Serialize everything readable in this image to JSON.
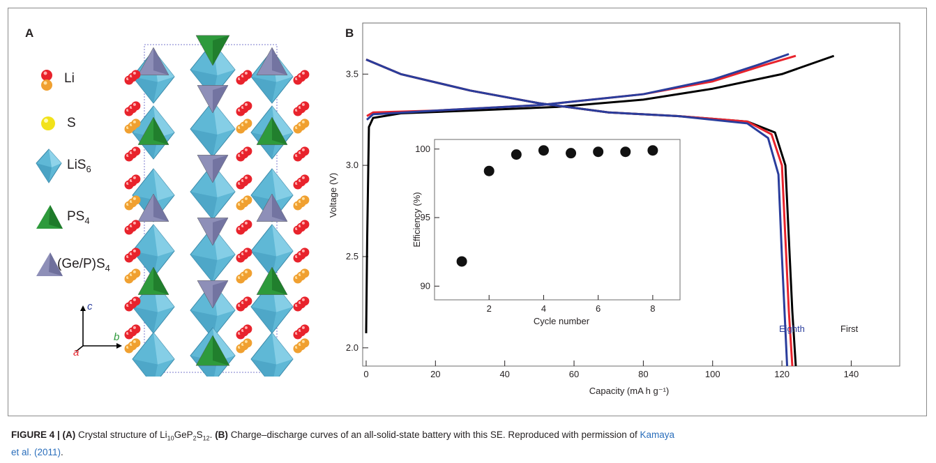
{
  "panel_a": {
    "letter": "A",
    "legend": [
      {
        "label": "Li",
        "icon": "li-atom-pair-icon"
      },
      {
        "label": "S",
        "icon": "s-atom-icon"
      },
      {
        "label": "LiS",
        "sub": "6",
        "icon": "lis6-octahedron-icon"
      },
      {
        "label": "PS",
        "sub": "4",
        "icon": "ps4-tetrahedron-icon"
      },
      {
        "label": "(Ge/P)S",
        "sub": "4",
        "icon": "gep-s4-tetrahedron-icon"
      }
    ],
    "axes": {
      "c": "c",
      "b": "b",
      "a": "a"
    },
    "colors": {
      "li_red": "#e8232c",
      "li_orange": "#f0a030",
      "s_yellow": "#f2e21a",
      "lis6_blue": "#5fb8d6",
      "ps4_green": "#2e9a3c",
      "gep_purple": "#8e8fb8"
    }
  },
  "panel_b": {
    "letter": "B",
    "curve_labels": {
      "eighth": "Eighth",
      "first": "First"
    }
  },
  "chart_data": [
    {
      "type": "line",
      "xlabel": "Capacity (mA h g⁻¹)",
      "ylabel": "Voltage (V)",
      "xlim": [
        -1,
        154
      ],
      "ylim": [
        1.9,
        3.78
      ],
      "xticks": [
        0,
        20,
        40,
        60,
        80,
        100,
        120,
        140
      ],
      "yticks": [
        2.0,
        2.5,
        3.0,
        3.5
      ],
      "ytick_labels": [
        "2.0",
        "2.5",
        "3.0",
        "3.5"
      ],
      "grid": false,
      "series": [
        {
          "name": "First",
          "color": "#000000",
          "charge": [
            [
              0,
              2.08
            ],
            [
              0.3,
              2.6
            ],
            [
              0.8,
              3.21
            ],
            [
              2,
              3.26
            ],
            [
              10,
              3.285
            ],
            [
              30,
              3.3
            ],
            [
              55,
              3.32
            ],
            [
              80,
              3.36
            ],
            [
              100,
              3.42
            ],
            [
              120,
              3.5
            ],
            [
              135,
              3.6
            ]
          ],
          "discharge": [
            [
              0,
              3.58
            ],
            [
              10,
              3.5
            ],
            [
              30,
              3.41
            ],
            [
              50,
              3.34
            ],
            [
              70,
              3.29
            ],
            [
              90,
              3.27
            ],
            [
              110,
              3.24
            ],
            [
              118,
              3.18
            ],
            [
              121,
              3.0
            ],
            [
              122,
              2.6
            ],
            [
              123,
              2.2
            ],
            [
              124,
              1.9
            ]
          ]
        },
        {
          "name": "",
          "color": "#e8232c",
          "charge": [
            [
              0.2,
              3.27
            ],
            [
              2,
              3.29
            ],
            [
              20,
              3.3
            ],
            [
              50,
              3.33
            ],
            [
              80,
              3.39
            ],
            [
              100,
              3.46
            ],
            [
              115,
              3.55
            ],
            [
              124,
              3.6
            ]
          ],
          "discharge": [
            [
              0,
              3.58
            ],
            [
              10,
              3.5
            ],
            [
              30,
              3.41
            ],
            [
              50,
              3.34
            ],
            [
              70,
              3.29
            ],
            [
              90,
              3.27
            ],
            [
              110,
              3.24
            ],
            [
              117,
              3.17
            ],
            [
              120,
              3.0
            ],
            [
              121,
              2.6
            ],
            [
              122,
              2.2
            ],
            [
              123,
              1.9
            ]
          ]
        },
        {
          "name": "Eighth",
          "color": "#2a3d9c",
          "charge": [
            [
              0.2,
              3.25
            ],
            [
              2,
              3.28
            ],
            [
              20,
              3.3
            ],
            [
              50,
              3.33
            ],
            [
              80,
              3.39
            ],
            [
              100,
              3.47
            ],
            [
              113,
              3.55
            ],
            [
              122,
              3.61
            ]
          ],
          "discharge": [
            [
              0,
              3.58
            ],
            [
              10,
              3.5
            ],
            [
              30,
              3.41
            ],
            [
              50,
              3.34
            ],
            [
              70,
              3.29
            ],
            [
              90,
              3.27
            ],
            [
              110,
              3.23
            ],
            [
              116,
              3.15
            ],
            [
              119,
              2.95
            ],
            [
              120,
              2.5
            ],
            [
              121,
              2.1
            ],
            [
              121.5,
              1.9
            ]
          ]
        }
      ]
    },
    {
      "type": "scatter",
      "xlabel": "Cycle number",
      "ylabel": "Efficiency (%)",
      "xlim": [
        0,
        9
      ],
      "ylim": [
        89,
        100.7
      ],
      "xticks": [
        2,
        4,
        6,
        8
      ],
      "yticks": [
        90,
        95,
        100
      ],
      "grid": false,
      "x": [
        1,
        2,
        3,
        4,
        5,
        6,
        7,
        8
      ],
      "y": [
        91.8,
        98.4,
        99.6,
        99.9,
        99.7,
        99.8,
        99.8,
        99.9
      ]
    }
  ],
  "caption": {
    "figure_label": "FIGURE 4 | ",
    "a_label": "(A)",
    "a_text": " Crystal structure of Li",
    "f1_sub": "10",
    "f2": "GeP",
    "f2_sub": "2",
    "f3": "S",
    "f3_sub": "12",
    "after_formula": ". ",
    "b_label": "(B)",
    "b_text": " Charge–discharge curves of an all-solid-state battery with this SE. Reproduced with permission of ",
    "citation_1": "Kamaya",
    "citation_2": "et al. (2011)",
    "end": "."
  }
}
